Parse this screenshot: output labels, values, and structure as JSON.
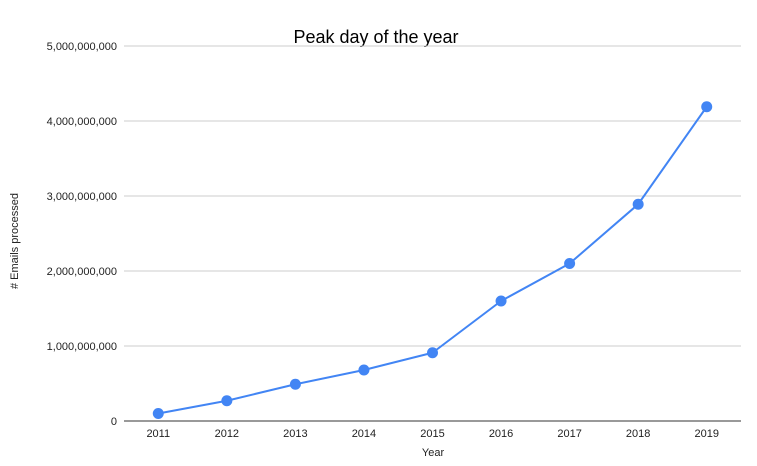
{
  "chart_data": {
    "type": "line",
    "title": "Peak day of the year",
    "xlabel": "Year",
    "ylabel": "# Emails processed",
    "categories": [
      "2011",
      "2012",
      "2013",
      "2014",
      "2015",
      "2016",
      "2017",
      "2018",
      "2019"
    ],
    "series": [
      {
        "values": [
          100000000,
          270000000,
          490000000,
          680000000,
          910000000,
          1600000000,
          2100000000,
          2890000000,
          4190000000
        ],
        "color": "#4285f4"
      }
    ],
    "ylim": [
      0,
      5000000000
    ],
    "yticks": [
      "0",
      "1,000,000,000",
      "2,000,000,000",
      "3,000,000,000",
      "4,000,000,000",
      "5,000,000,000"
    ],
    "markers": true,
    "grid": true,
    "legend": "none"
  }
}
